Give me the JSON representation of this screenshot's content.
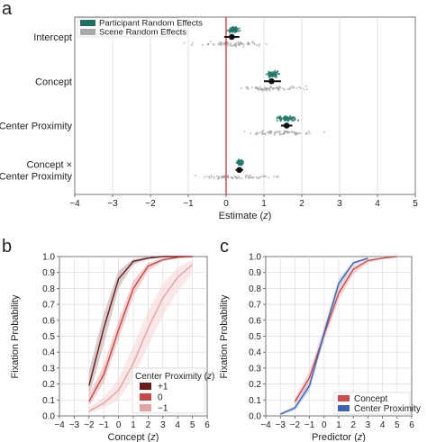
{
  "panel_letters": [
    "a",
    "b",
    "c"
  ],
  "chart_data": [
    {
      "id": "a",
      "type": "scatter",
      "xlabel": "Estimate",
      "xlabel_var": "z",
      "xlim": [
        -4,
        5
      ],
      "xticks": [
        -4,
        -3,
        -2,
        -1,
        0,
        1,
        2,
        3,
        4,
        5
      ],
      "x_ticklabels": [
        "−4",
        "−3",
        "−2",
        "−1",
        "0",
        "1",
        "2",
        "3",
        "4",
        "5"
      ],
      "grid": "vertical",
      "reference_line_x": 0,
      "reference_line_color": "#d62e2e",
      "rows": [
        {
          "label": [
            "Intercept"
          ],
          "estimate": 0.15,
          "ci": [
            -0.05,
            0.35
          ],
          "participant_center": 0.2,
          "participant_spread": 0.25,
          "scene_center": 0.1,
          "scene_spread": 1.6
        },
        {
          "label": [
            "Concept"
          ],
          "estimate": 1.2,
          "ci": [
            1.0,
            1.45
          ],
          "participant_center": 1.25,
          "participant_spread": 0.25,
          "scene_center": 1.2,
          "scene_spread": 1.5
        },
        {
          "label": [
            "Center Proximity"
          ],
          "estimate": 1.6,
          "ci": [
            1.45,
            1.75
          ],
          "participant_center": 1.55,
          "participant_spread": 0.5,
          "scene_center": 1.5,
          "scene_spread": 1.5
        },
        {
          "label": [
            "Concept ×",
            "Center Proximity"
          ],
          "estimate": 0.35,
          "ci": [
            0.25,
            0.45
          ],
          "participant_center": 0.37,
          "participant_spread": 0.12,
          "scene_center": 0.35,
          "scene_spread": 1.6
        }
      ],
      "legend": [
        {
          "name": "Participant Random Effects",
          "color": "#1f6f63"
        },
        {
          "name": "Scene Random Effects",
          "color": "#a9a9a9"
        }
      ],
      "colors": {
        "participant": "#1f7a6c",
        "scene": "#9b9b9b",
        "estimate": "#111111"
      }
    },
    {
      "id": "b",
      "type": "line",
      "xlabel": "Concept",
      "xlabel_var": "z",
      "ylabel": "Fixation Probability",
      "xlim": [
        -4,
        6
      ],
      "ylim": [
        0,
        1
      ],
      "xticks": [
        -4,
        -3,
        -2,
        -1,
        0,
        1,
        2,
        3,
        4,
        5,
        6
      ],
      "x_ticklabels": [
        "−4",
        "−3",
        "−2",
        "−1",
        "0",
        "1",
        "2",
        "3",
        "4",
        "5",
        "6"
      ],
      "yticks": [
        0,
        0.1,
        0.2,
        0.3,
        0.4,
        0.5,
        0.6,
        0.7,
        0.8,
        0.9,
        1.0
      ],
      "y_ticklabels": [
        "0.0",
        "0.1",
        "0.2",
        "0.3",
        "0.4",
        "0.5",
        "0.6",
        "0.7",
        "0.8",
        "0.9",
        "1.0"
      ],
      "grid": true,
      "legend_title": "Center Proximity",
      "legend_title_var": "z",
      "legend_placement": "bottom-right",
      "x": [
        -2,
        -1,
        0,
        1,
        2,
        3,
        4,
        5
      ],
      "series": [
        {
          "name": "+1",
          "color": "#6e1a1a",
          "band_color": "#b9a3a3",
          "values": [
            0.19,
            0.55,
            0.86,
            0.97,
            0.99,
            1.0,
            1.0,
            1.0
          ],
          "lower": [
            0.12,
            0.45,
            0.8,
            0.95,
            0.985,
            0.995,
            1.0,
            1.0
          ],
          "upper": [
            0.28,
            0.64,
            0.91,
            0.985,
            0.998,
            1.0,
            1.0,
            1.0
          ]
        },
        {
          "name": "0",
          "color": "#c84646",
          "band_color": "#e8aaaa",
          "values": [
            0.09,
            0.26,
            0.54,
            0.8,
            0.94,
            0.98,
            0.995,
            1.0
          ],
          "lower": [
            0.06,
            0.21,
            0.48,
            0.75,
            0.91,
            0.97,
            0.99,
            1.0
          ],
          "upper": [
            0.13,
            0.32,
            0.6,
            0.85,
            0.96,
            0.99,
            1.0,
            1.0
          ]
        },
        {
          "name": "−1",
          "color": "#e4a3a3",
          "band_color": "#f5d6d6",
          "values": [
            0.03,
            0.08,
            0.16,
            0.33,
            0.55,
            0.74,
            0.87,
            0.95
          ],
          "lower": [
            0.015,
            0.05,
            0.1,
            0.24,
            0.44,
            0.63,
            0.78,
            0.9
          ],
          "upper": [
            0.05,
            0.12,
            0.23,
            0.44,
            0.66,
            0.83,
            0.93,
            0.98
          ]
        }
      ]
    },
    {
      "id": "c",
      "type": "line",
      "xlabel": "Predictor",
      "xlabel_var": "z",
      "ylabel": "Fixation Probability",
      "xlim": [
        -4,
        6
      ],
      "ylim": [
        0,
        1
      ],
      "xticks": [
        -4,
        -3,
        -2,
        -1,
        0,
        1,
        2,
        3,
        4,
        5,
        6
      ],
      "x_ticklabels": [
        "−4",
        "−3",
        "−2",
        "−1",
        "0",
        "1",
        "2",
        "3",
        "4",
        "5",
        "6"
      ],
      "yticks": [
        0,
        0.1,
        0.2,
        0.3,
        0.4,
        0.5,
        0.6,
        0.7,
        0.8,
        0.9,
        1.0
      ],
      "y_ticklabels": [
        "0.0",
        "0.1",
        "0.2",
        "0.3",
        "0.4",
        "0.5",
        "0.6",
        "0.7",
        "0.8",
        "0.9",
        "1.0"
      ],
      "grid": true,
      "legend_placement": "bottom-right",
      "series": [
        {
          "name": "Concept",
          "color": "#cc4a4a",
          "band_color": "#ebb1b1",
          "x": [
            -2,
            -1,
            0,
            1,
            2,
            3,
            4,
            5
          ],
          "values": [
            0.09,
            0.24,
            0.51,
            0.77,
            0.92,
            0.975,
            0.99,
            1.0
          ],
          "lower": [
            0.07,
            0.2,
            0.47,
            0.73,
            0.89,
            0.96,
            0.985,
            1.0
          ],
          "upper": [
            0.11,
            0.28,
            0.55,
            0.81,
            0.94,
            0.985,
            0.995,
            1.0
          ]
        },
        {
          "name": "Center Proximity",
          "color": "#3f63b8",
          "band_color": "#a9bde6",
          "x": [
            -3,
            -2,
            -1,
            0,
            1,
            2,
            3
          ],
          "values": [
            0.01,
            0.05,
            0.19,
            0.52,
            0.83,
            0.96,
            0.99
          ],
          "lower": [
            0.005,
            0.035,
            0.16,
            0.48,
            0.8,
            0.945,
            0.985
          ],
          "upper": [
            0.02,
            0.065,
            0.22,
            0.56,
            0.86,
            0.97,
            0.995
          ]
        }
      ]
    }
  ]
}
